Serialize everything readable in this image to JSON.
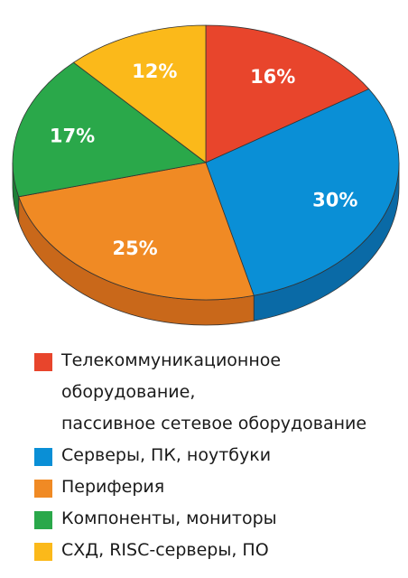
{
  "chart_data": {
    "type": "pie",
    "title": "",
    "slices": [
      {
        "label": "Телекоммуникационное\nоборудование,\nпассивное сетевое оборудование",
        "value": 16,
        "display": "16%",
        "color": "#e8452c",
        "side_color": "#b33320"
      },
      {
        "label": "Серверы, ПК, ноутбуки",
        "value": 30,
        "display": "30%",
        "color": "#0a8fd6",
        "side_color": "#0a6aa6"
      },
      {
        "label": "Периферия",
        "value": 25,
        "display": "25%",
        "color": "#f08a24",
        "side_color": "#c9681a"
      },
      {
        "label": "Компоненты, мониторы",
        "value": 17,
        "display": "17%",
        "color": "#2aa84a",
        "side_color": "#1e7e37"
      },
      {
        "label": "СХД, RISC-серверы, ПО",
        "value": 12,
        "display": "12%",
        "color": "#fbb91a",
        "side_color": "#d0950f"
      }
    ],
    "legend_position": "bottom"
  }
}
